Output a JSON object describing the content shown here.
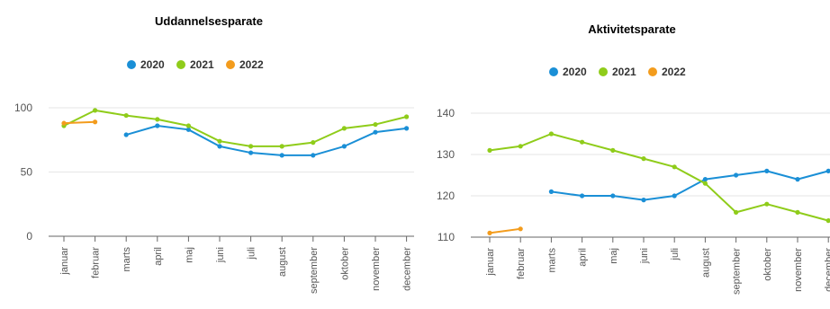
{
  "colors": {
    "2020": "#1a8fd6",
    "2021": "#8fcc1a",
    "2022": "#f39c1d",
    "grid": "#e6e6e6",
    "axis": "#666666"
  },
  "chart_data": [
    {
      "type": "line",
      "title": "Uddannelsesparate",
      "categories": [
        "januar",
        "februar",
        "marts",
        "april",
        "maj",
        "juni",
        "juli",
        "august",
        "september",
        "oktober",
        "november",
        "december"
      ],
      "ylim": [
        0,
        100
      ],
      "yticks": [
        "0",
        "50",
        "100"
      ],
      "ytick_values": [
        0,
        50,
        100
      ],
      "grid": true,
      "legend": "top-center",
      "series": [
        {
          "name": "2020",
          "color": "#1a8fd6",
          "values": [
            null,
            null,
            79,
            86,
            83,
            70,
            65,
            63,
            63,
            70,
            81,
            84
          ]
        },
        {
          "name": "2021",
          "color": "#8fcc1a",
          "values": [
            86,
            98,
            94,
            91,
            86,
            74,
            70,
            70,
            73,
            84,
            87,
            93
          ]
        },
        {
          "name": "2022",
          "color": "#f39c1d",
          "values": [
            88,
            89,
            null,
            null,
            null,
            null,
            null,
            null,
            null,
            null,
            null,
            null
          ]
        }
      ]
    },
    {
      "type": "line",
      "title": "Aktivitetsparate",
      "categories": [
        "januar",
        "februar",
        "marts",
        "april",
        "maj",
        "juni",
        "juli",
        "august",
        "september",
        "oktober",
        "november",
        "december"
      ],
      "ylim": [
        110,
        140
      ],
      "yticks": [
        "110",
        "120",
        "130",
        "140"
      ],
      "ytick_values": [
        110,
        120,
        130,
        140
      ],
      "grid": true,
      "legend": "top-center",
      "series": [
        {
          "name": "2020",
          "color": "#1a8fd6",
          "values": [
            null,
            null,
            121,
            120,
            120,
            119,
            120,
            124,
            125,
            126,
            124,
            126
          ]
        },
        {
          "name": "2021",
          "color": "#8fcc1a",
          "values": [
            131,
            132,
            135,
            133,
            131,
            129,
            127,
            123,
            116,
            118,
            116,
            114
          ]
        },
        {
          "name": "2022",
          "color": "#f39c1d",
          "values": [
            111,
            112,
            null,
            null,
            null,
            null,
            null,
            null,
            null,
            null,
            null,
            null
          ]
        }
      ]
    }
  ]
}
